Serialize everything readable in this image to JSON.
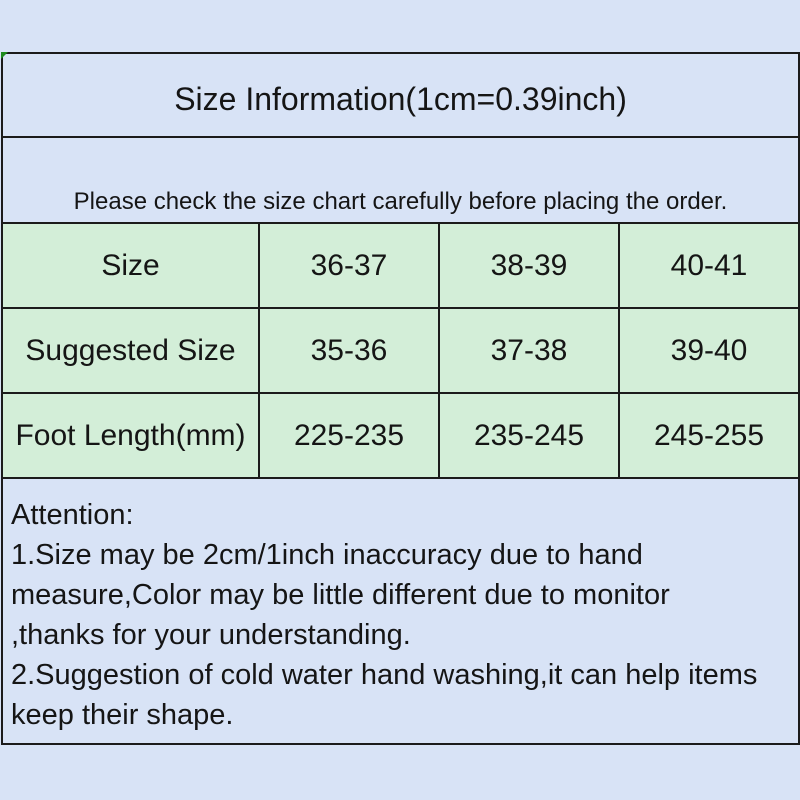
{
  "colors": {
    "page_background": "#d8e3f6",
    "table_cell_green": "#d3eed8",
    "border_black": "#1b1b1b",
    "corner_artifact_green": "#1e8a1e"
  },
  "title": "Size Information(1cm=0.39inch)",
  "notice": "Please check the size chart carefully before placing the order.",
  "size_table": {
    "rows": [
      {
        "label": "Size",
        "values": [
          "36-37",
          "38-39",
          "40-41"
        ]
      },
      {
        "label": "Suggested Size",
        "values": [
          "35-36",
          "37-38",
          "39-40"
        ]
      },
      {
        "label": "Foot Length(mm)",
        "values": [
          "225-235",
          "235-245",
          "245-255"
        ]
      }
    ]
  },
  "attention": {
    "heading": "Attention:",
    "lines": [
      "1.Size may be 2cm/1inch inaccuracy due to hand",
      "measure,Color may be little different due to monitor",
      ",thanks for your understanding.",
      "2.Suggestion of cold water hand washing,it can help items",
      "keep their shape."
    ]
  }
}
